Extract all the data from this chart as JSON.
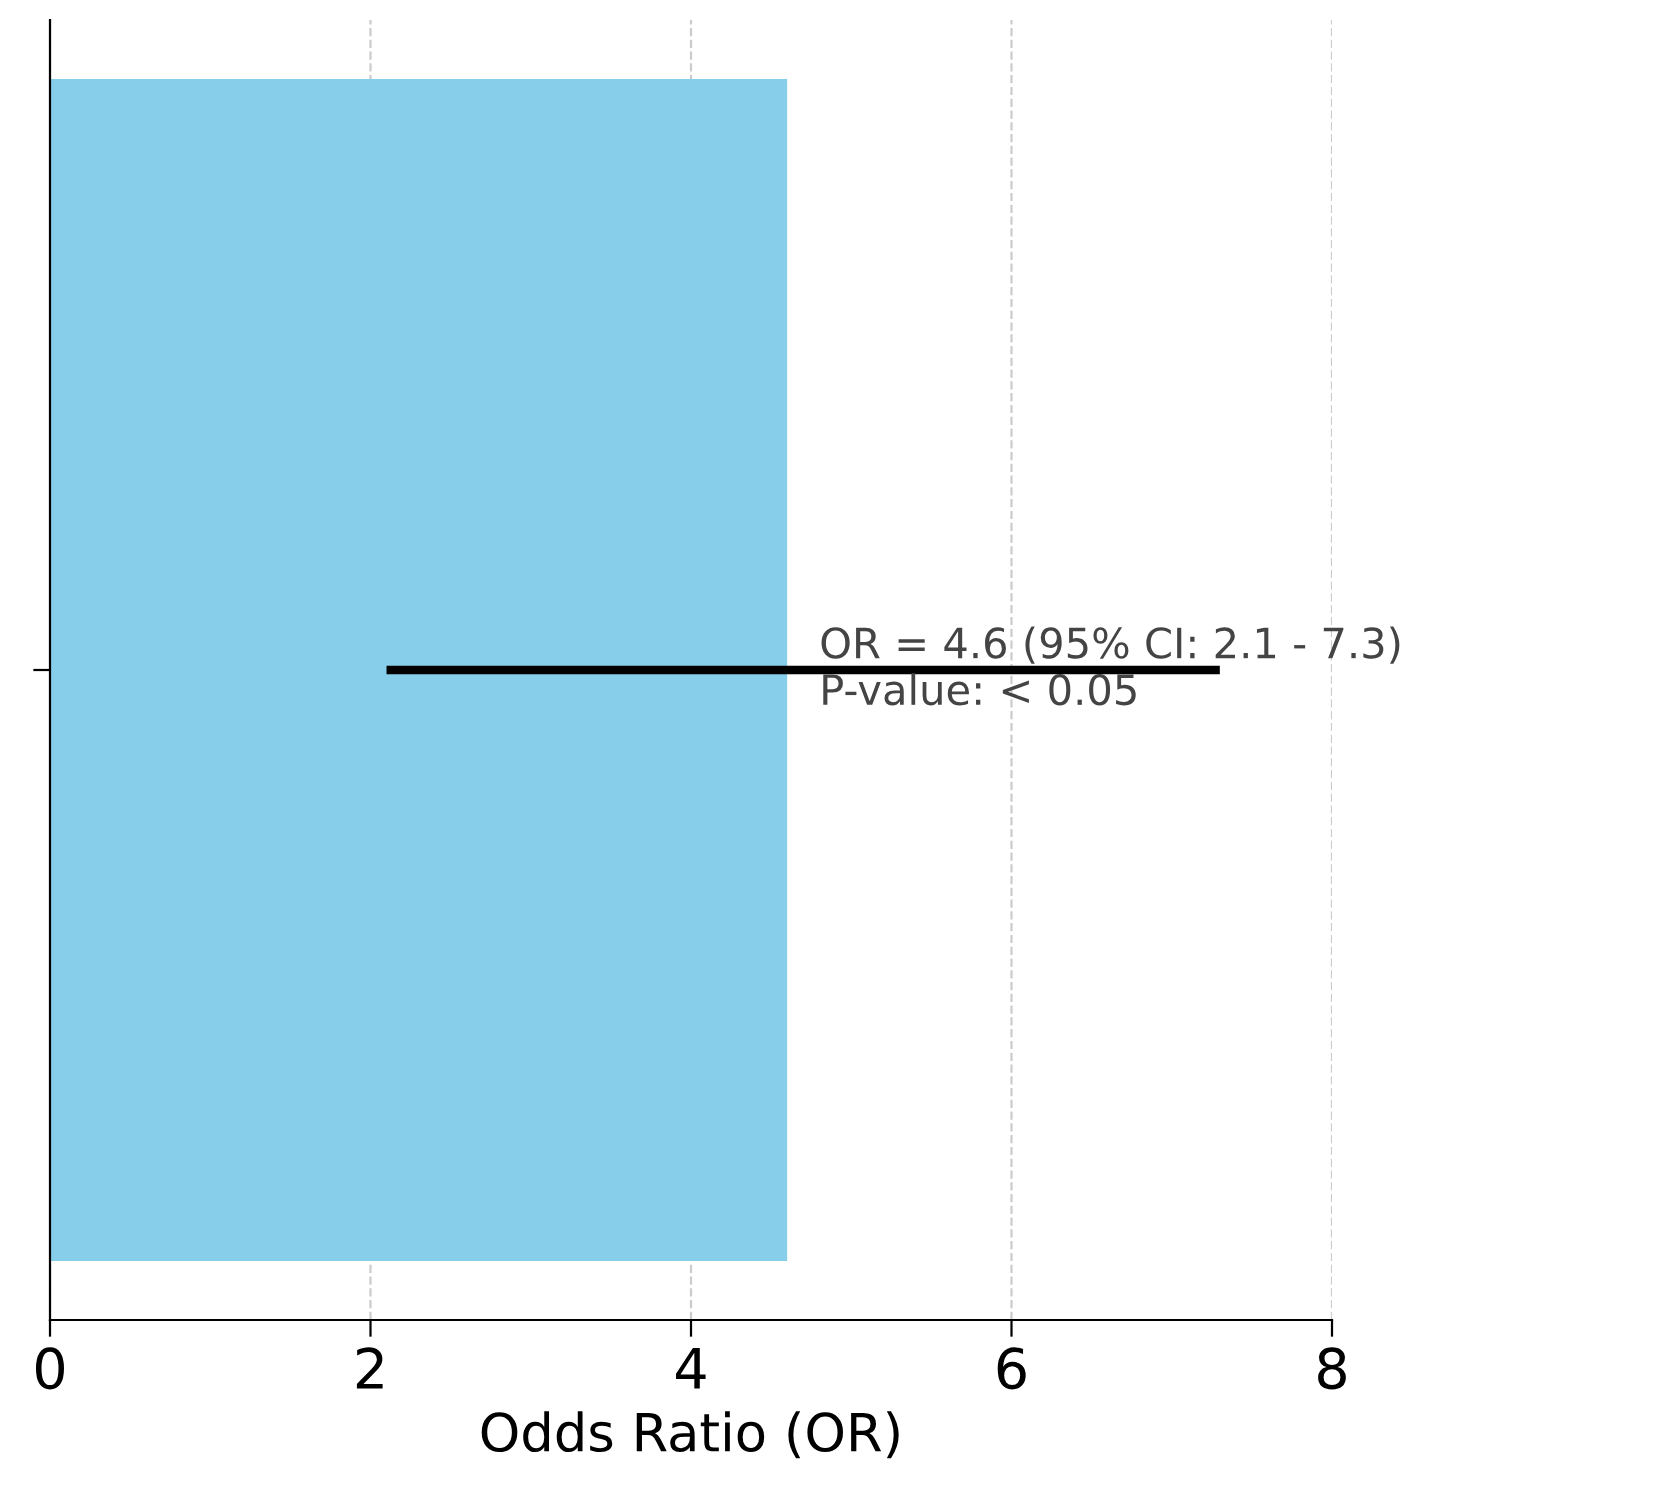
{
  "chart_data": {
    "type": "bar",
    "orientation": "horizontal",
    "categories": [
      null
    ],
    "values": [
      4.6
    ],
    "errors": [
      [
        2.1,
        7.3
      ]
    ],
    "color": "#87ceeb",
    "xlabel": "Odds Ratio (OR)",
    "xlim": [
      0,
      8
    ],
    "xticks": [
      0,
      2,
      4,
      6,
      8
    ],
    "grid": "x",
    "annotations": [
      "OR = 4.6 (95% CI: 2.1 - 7.3)\nP-value: < 0.05"
    ]
  }
}
